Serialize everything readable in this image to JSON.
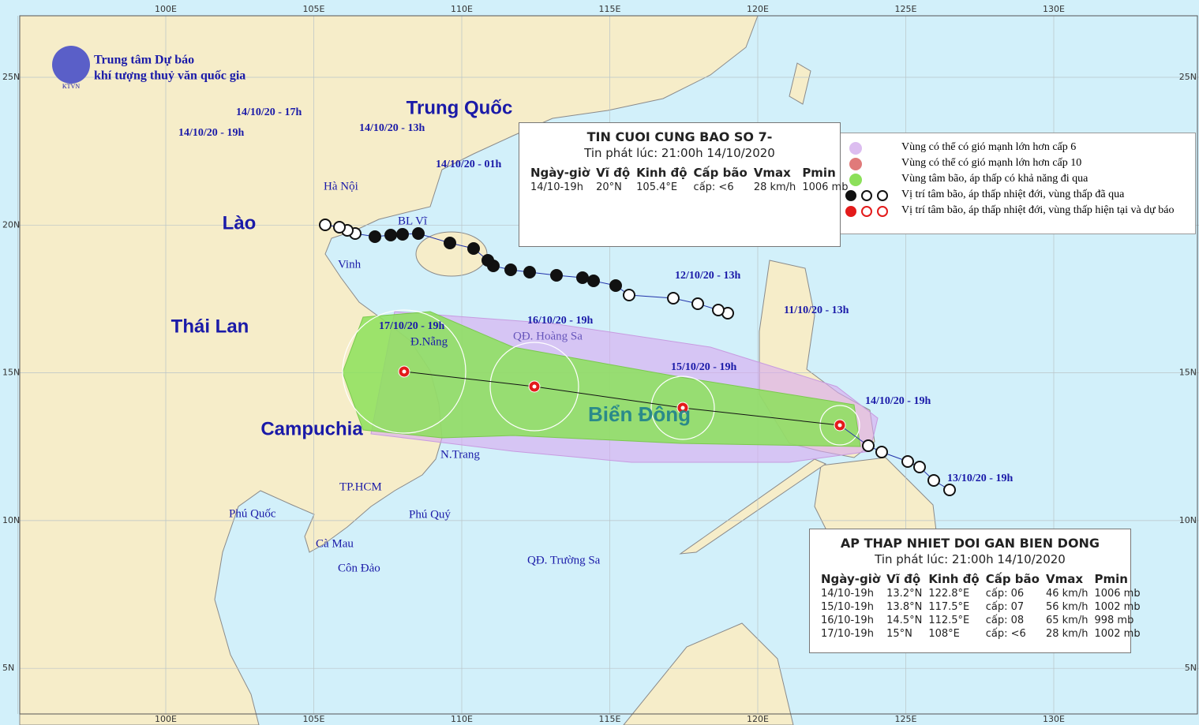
{
  "header": {
    "org": [
      "Trung tâm Dự báo",
      "khí tượng thuỷ văn quốc gia"
    ],
    "logo": "KTVN"
  },
  "map": {
    "lon_labels": [
      "100E",
      "105E",
      "110E",
      "115E",
      "120E",
      "125E",
      "130E"
    ],
    "lat_labels": [
      "25N",
      "20N",
      "15N",
      "10N",
      "5N"
    ],
    "regions": [
      "Trung Quốc",
      "Lào",
      "Thái Lan",
      "Campuchia",
      "Biển Đông"
    ],
    "places": [
      "Hà Nội",
      "BL Vĩ",
      "Vinh",
      "Đ.Nẵng",
      "QĐ. Hoàng Sa",
      "N.Trang",
      "TP.HCM",
      "Phú Quốc",
      "Phú Quý",
      "Cà Mau",
      "Côn Đảo",
      "QĐ. Trường Sa"
    ],
    "track_labels": [
      "14/10/20 - 17h",
      "14/10/20 - 19h",
      "14/10/20 - 13h",
      "14/10/20 - 01h",
      "12/10/20 - 13h",
      "11/10/20 - 13h",
      "16/10/20 - 19h",
      "17/10/20 - 19h",
      "15/10/20 - 19h",
      "14/10/20 - 19h",
      "13/10/20 - 19h"
    ]
  },
  "legend": [
    "Vùng có thể có gió mạnh lớn hơn cấp 6",
    "Vùng có thể có gió mạnh lớn hơn cấp 10",
    "Vùng tâm bão, áp thấp có khả năng đi qua",
    "Vị trí tâm bão, áp thấp nhiệt đới, vùng thấp đã qua",
    "Vị trí tâm bão, áp thấp nhiệt đới, vùng thấp hiện tại và dự báo"
  ],
  "bulletins": [
    {
      "title": "TIN CUOI CUNG BAO SO 7-",
      "issued": "Tin phát lúc: 21:00h 14/10/2020",
      "columns": [
        "Ngày-giờ",
        "Vĩ độ",
        "Kinh độ",
        "Cấp bão",
        "Vmax",
        "Pmin"
      ],
      "rows": [
        [
          "14/10-19h",
          "20°N",
          "105.4°E",
          "cấp: <6",
          "28 km/h",
          "1006 mb"
        ]
      ]
    },
    {
      "title": "AP THAP NHIET DOI GAN BIEN DONG",
      "issued": "Tin phát lúc: 21:00h 14/10/2020",
      "columns": [
        "Ngày-giờ",
        "Vĩ độ",
        "Kinh độ",
        "Cấp bão",
        "Vmax",
        "Pmin"
      ],
      "rows": [
        [
          "14/10-19h",
          "13.2°N",
          "122.8°E",
          "cấp: 06",
          "46 km/h",
          "1006 mb"
        ],
        [
          "15/10-19h",
          "13.8°N",
          "117.5°E",
          "cấp: 07",
          "56 km/h",
          "1002 mb"
        ],
        [
          "16/10-19h",
          "14.5°N",
          "112.5°E",
          "cấp: 08",
          "65 km/h",
          "998 mb"
        ],
        [
          "17/10-19h",
          "15°N",
          "108°E",
          "cấp: <6",
          "28 km/h",
          "1002 mb"
        ]
      ]
    }
  ]
}
